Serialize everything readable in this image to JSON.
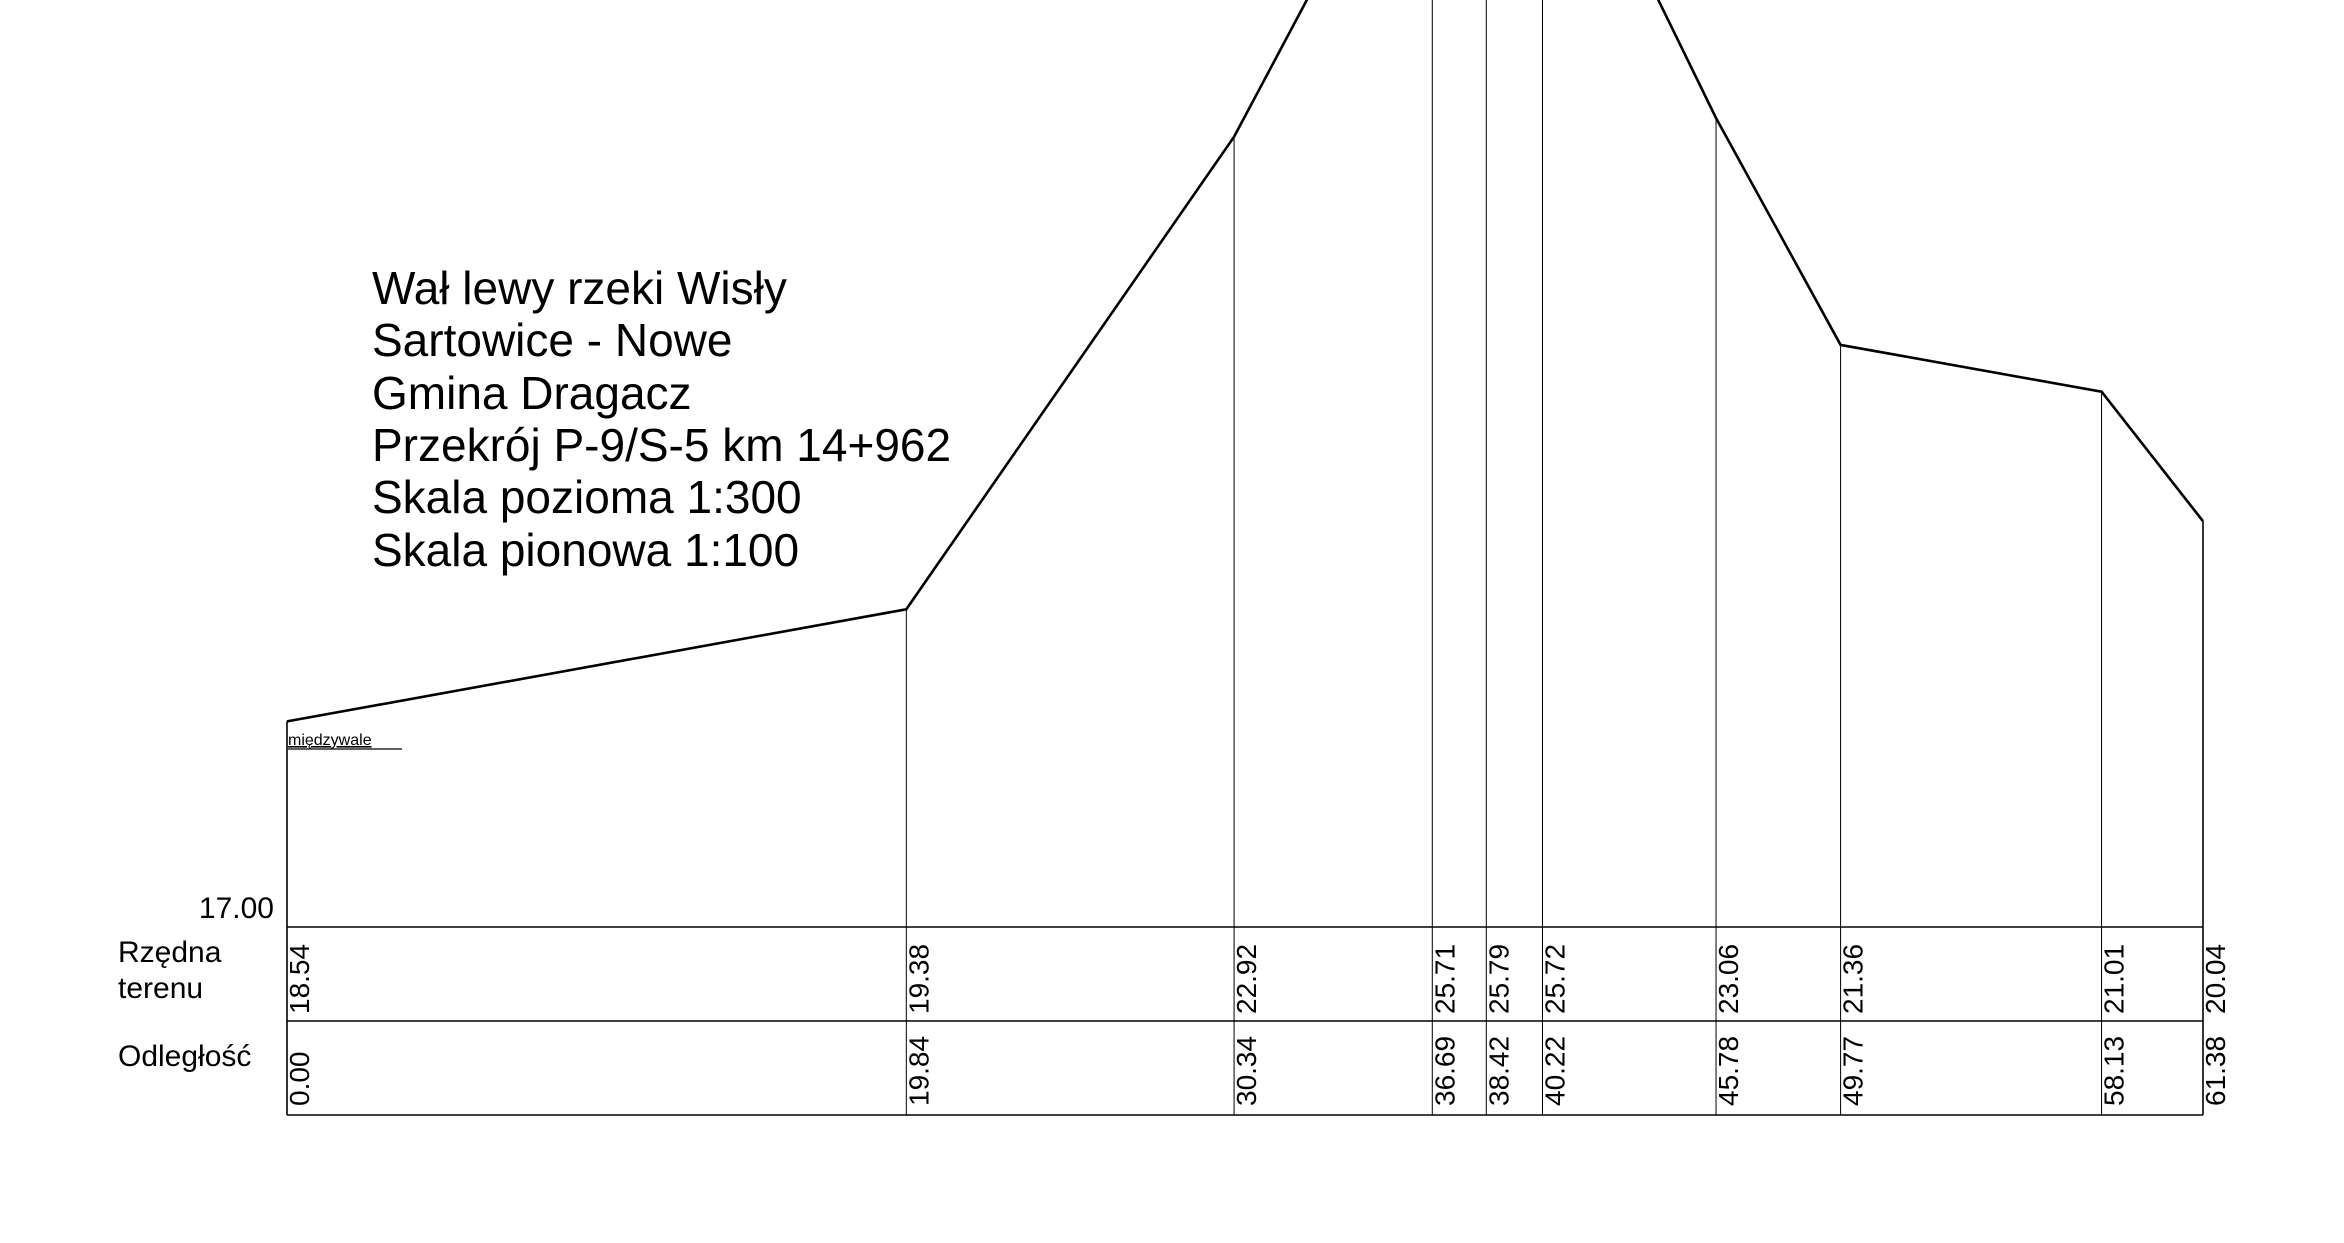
{
  "chart_data": {
    "type": "line",
    "title_lines": [
      "Wał lewy rzeki Wisły",
      "Sartowice - Nowe",
      "Gmina Dragacz",
      "Przekrój P-9/S-5 km 14+962",
      "Skala pozioma 1:300",
      "Skala pionowa 1:100"
    ],
    "annotation": "międzywale",
    "datum_label": "17.00",
    "datum": 17.0,
    "row_labels": {
      "elevation": [
        "Rzędna",
        "terenu"
      ],
      "distance": "Odległość"
    },
    "x": [
      0.0,
      19.84,
      30.34,
      36.69,
      38.42,
      40.22,
      45.78,
      49.77,
      58.13,
      61.38
    ],
    "y": [
      18.54,
      19.38,
      22.92,
      25.71,
      25.79,
      25.72,
      23.06,
      21.36,
      21.01,
      20.04
    ],
    "x_labels": [
      "0.00",
      "19.84",
      "30.34",
      "36.69",
      "38.42",
      "40.22",
      "45.78",
      "49.77",
      "58.13",
      "61.38"
    ],
    "y_labels": [
      "18.54",
      "19.38",
      "22.92",
      "25.71",
      "25.79",
      "25.72",
      "23.06",
      "21.36",
      "21.01",
      "20.04"
    ],
    "grid": false
  }
}
